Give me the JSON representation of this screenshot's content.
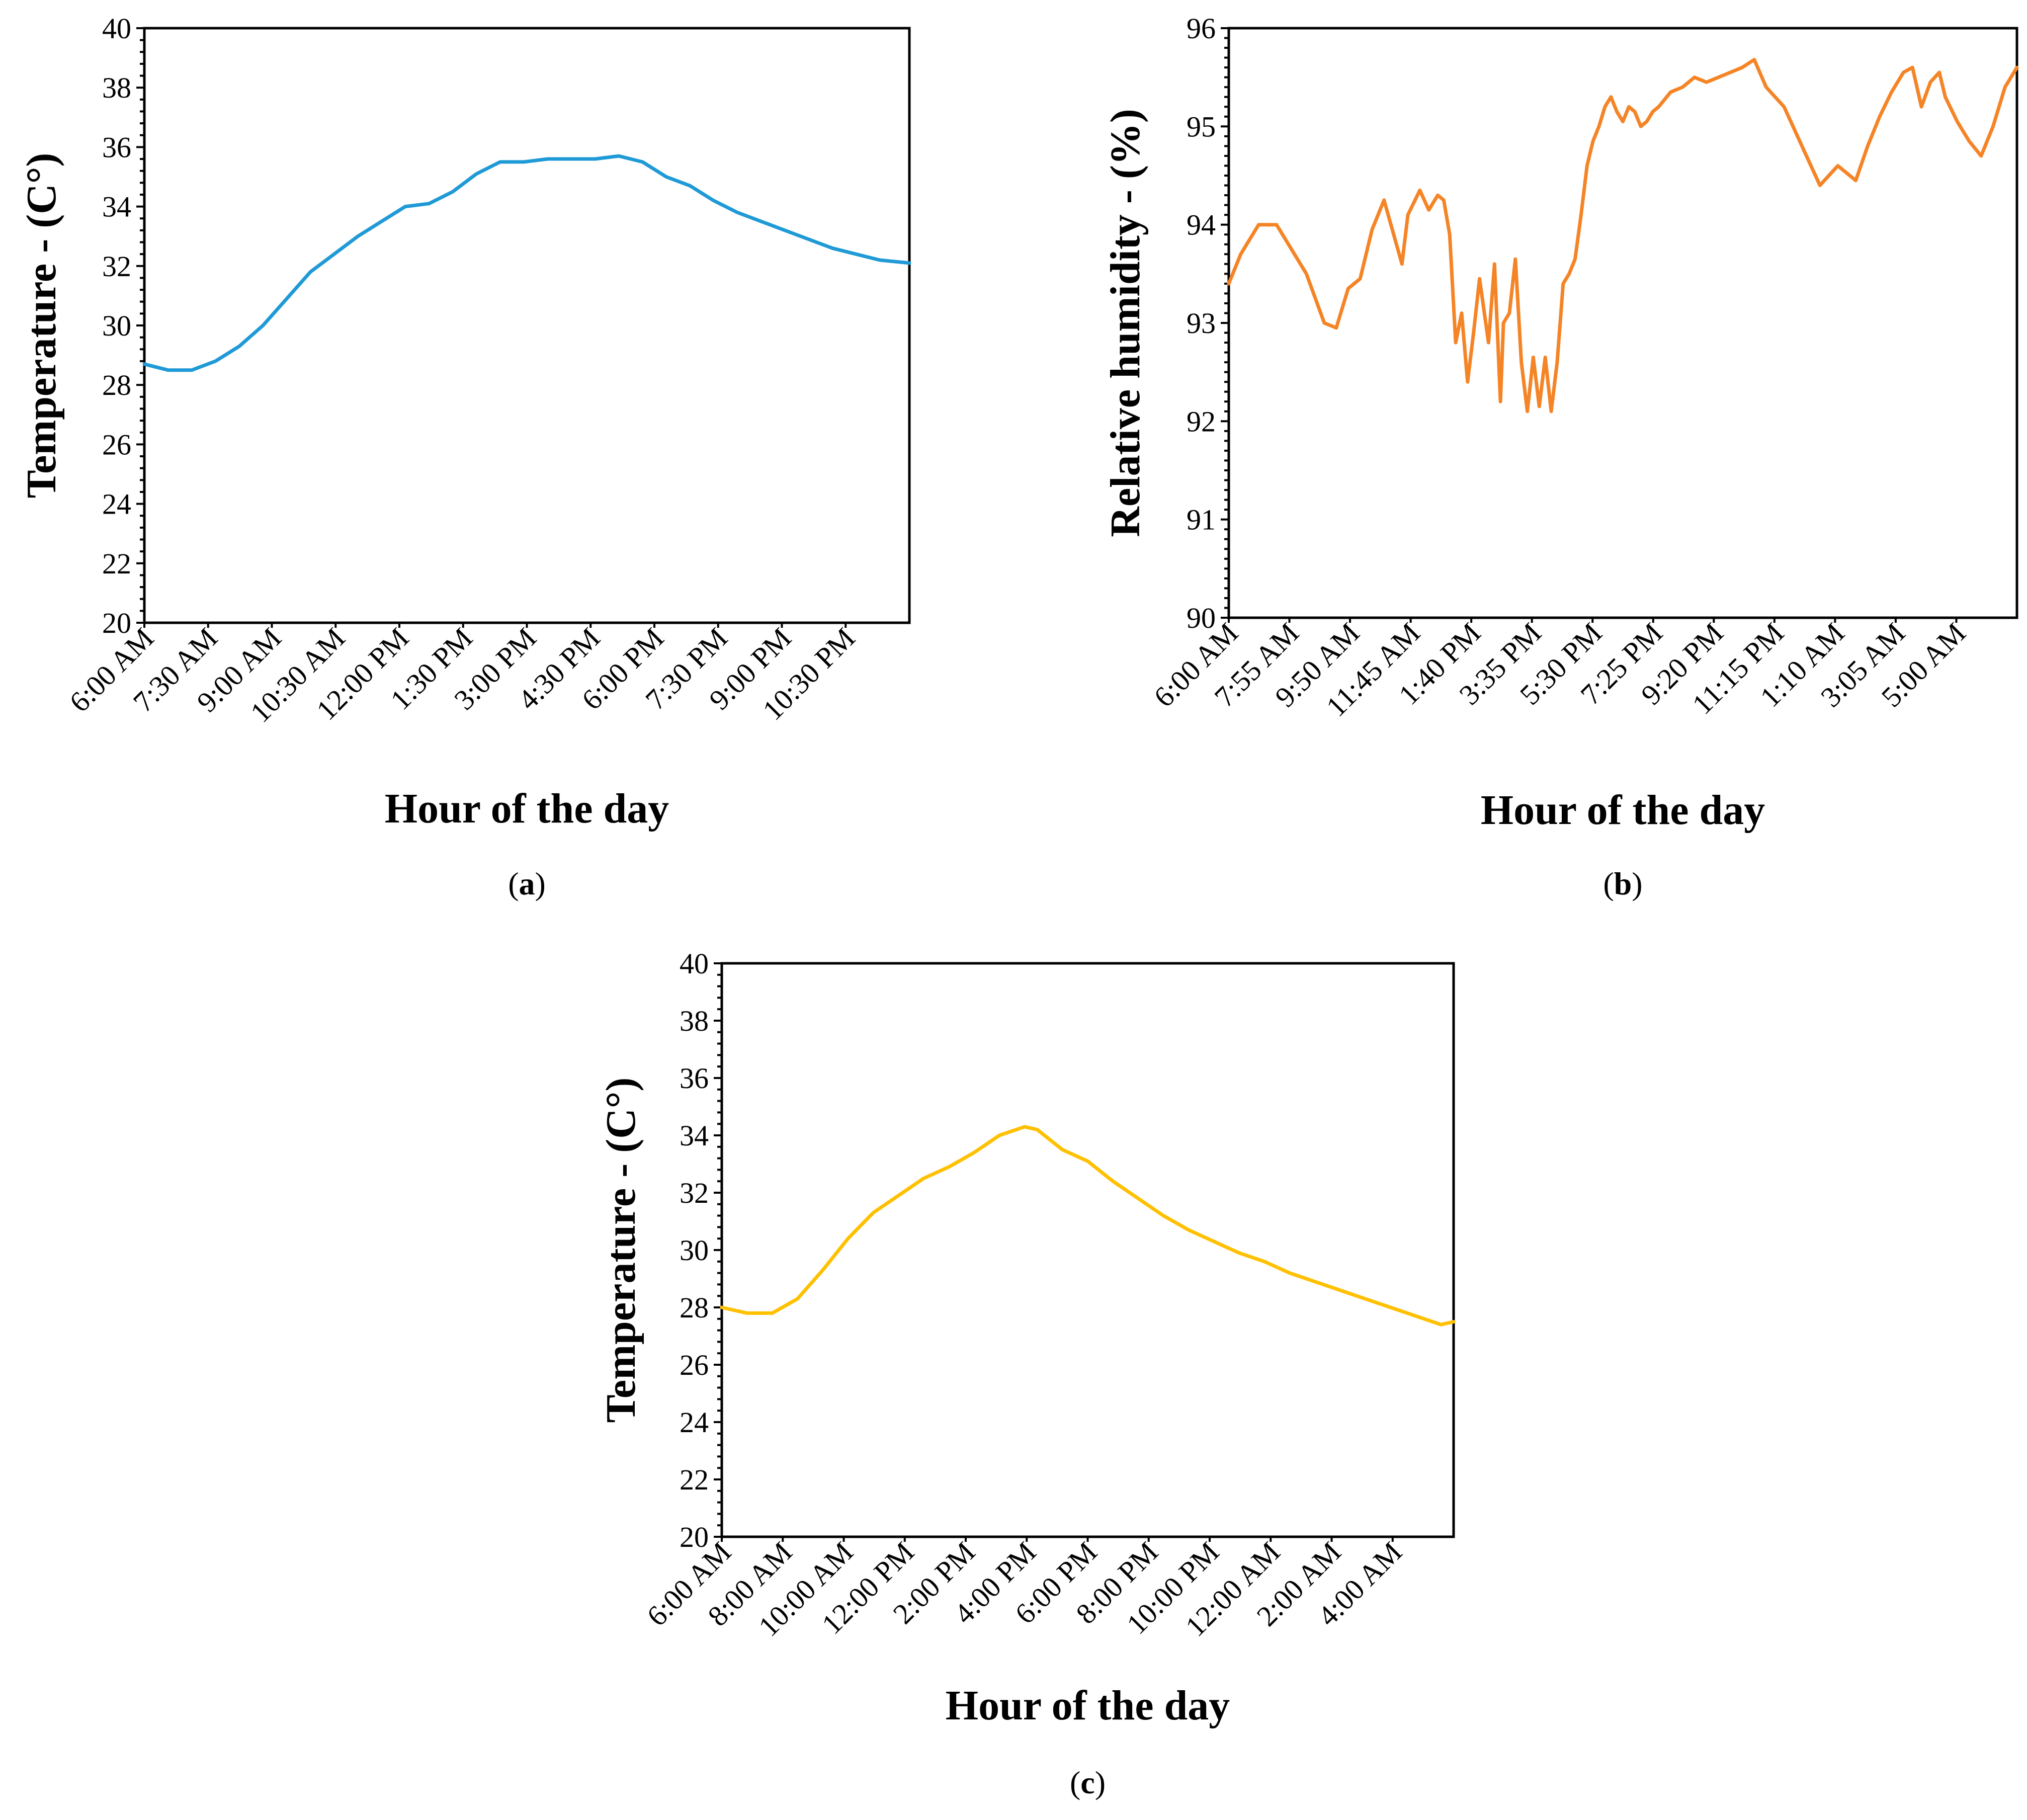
{
  "chart_data": [
    {
      "id": "a",
      "type": "line",
      "panel_label": "a",
      "xlabel": "Hour of the day",
      "ylabel": "Temperature - (C°)",
      "ylim": [
        20,
        40
      ],
      "y_ticks": [
        "20",
        "22",
        "24",
        "26",
        "28",
        "30",
        "32",
        "34",
        "36",
        "38",
        "40"
      ],
      "categories": [
        "6:00 AM",
        "7:30 AM",
        "9:00 AM",
        "10:30 AM",
        "12:00 PM",
        "1:30 PM",
        "3:00 PM",
        "4:30 PM",
        "6:00 PM",
        "7:30 PM",
        "9:00 PM",
        "10:30 PM"
      ],
      "x_range": [
        0,
        12.9
      ],
      "color": "#1f9ad6",
      "series": [
        {
          "name": "Temperature",
          "x": [
            0,
            0.4,
            0.8,
            1.2,
            1.6,
            2.0,
            2.4,
            2.8,
            3.2,
            3.6,
            4.0,
            4.4,
            4.8,
            5.2,
            5.6,
            6.0,
            6.4,
            6.8,
            7.2,
            7.6,
            8.0,
            8.4,
            8.8,
            9.2,
            9.6,
            10.0,
            10.4,
            10.8,
            11.2,
            11.6,
            12.0,
            12.4,
            12.9
          ],
          "y": [
            28.7,
            28.5,
            28.5,
            28.8,
            29.3,
            30.0,
            30.9,
            31.8,
            32.4,
            33.0,
            33.5,
            34.0,
            34.1,
            34.5,
            35.1,
            35.5,
            35.5,
            35.6,
            35.6,
            35.6,
            35.7,
            35.5,
            35.0,
            34.7,
            34.2,
            33.8,
            33.5,
            33.2,
            32.9,
            32.6,
            32.4,
            32.2,
            32.1
          ]
        }
      ]
    },
    {
      "id": "b",
      "type": "line",
      "panel_label": "b",
      "xlabel": "Hour of the day",
      "ylabel": "Relative humidity - (%)",
      "ylim": [
        90,
        96
      ],
      "y_ticks": [
        "90",
        "91",
        "92",
        "93",
        "94",
        "95",
        "96"
      ],
      "categories": [
        "6:00 AM",
        "7:55 AM",
        "9:50 AM",
        "11:45 AM",
        "1:40 PM",
        "3:35 PM",
        "5:30 PM",
        "7:25 PM",
        "9:20 PM",
        "11:15 PM",
        "1:10 AM",
        "3:05 AM",
        "5:00 AM"
      ],
      "x_range": [
        0,
        13.2
      ],
      "color": "#f58426",
      "series": [
        {
          "name": "Relative humidity",
          "x": [
            0,
            0.2,
            0.5,
            0.8,
            1.0,
            1.3,
            1.6,
            1.8,
            2.0,
            2.2,
            2.4,
            2.6,
            2.9,
            3.0,
            3.2,
            3.35,
            3.5,
            3.6,
            3.7,
            3.8,
            3.9,
            4.0,
            4.1,
            4.2,
            4.35,
            4.45,
            4.55,
            4.6,
            4.7,
            4.8,
            4.9,
            5.0,
            5.1,
            5.2,
            5.3,
            5.4,
            5.5,
            5.6,
            5.7,
            5.8,
            5.9,
            6.0,
            6.1,
            6.2,
            6.3,
            6.4,
            6.5,
            6.6,
            6.7,
            6.8,
            6.9,
            7.0,
            7.1,
            7.2,
            7.4,
            7.6,
            7.8,
            8.0,
            8.2,
            8.4,
            8.6,
            8.8,
            9.0,
            9.3,
            9.6,
            9.9,
            10.2,
            10.5,
            10.7,
            10.9,
            11.1,
            11.3,
            11.45,
            11.6,
            11.75,
            11.9,
            12.0,
            12.2,
            12.4,
            12.6,
            12.8,
            13.0,
            13.2
          ],
          "y": [
            93.4,
            93.7,
            94.0,
            94.0,
            93.8,
            93.5,
            93.0,
            92.95,
            93.35,
            93.45,
            93.95,
            94.25,
            93.6,
            94.1,
            94.35,
            94.15,
            94.3,
            94.25,
            93.9,
            92.8,
            93.1,
            92.4,
            92.9,
            93.45,
            92.8,
            93.6,
            92.2,
            93.0,
            93.1,
            93.65,
            92.6,
            92.1,
            92.65,
            92.15,
            92.65,
            92.1,
            92.6,
            93.4,
            93.5,
            93.65,
            94.1,
            94.6,
            94.85,
            95.0,
            95.2,
            95.3,
            95.15,
            95.05,
            95.2,
            95.15,
            95.0,
            95.05,
            95.15,
            95.2,
            95.35,
            95.4,
            95.5,
            95.45,
            95.5,
            95.55,
            95.6,
            95.68,
            95.4,
            95.2,
            94.8,
            94.4,
            94.6,
            94.45,
            94.8,
            95.1,
            95.35,
            95.55,
            95.6,
            95.2,
            95.45,
            95.55,
            95.3,
            95.05,
            94.85,
            94.7,
            95.0,
            95.4,
            95.6
          ]
        }
      ]
    },
    {
      "id": "c",
      "type": "line",
      "panel_label": "c",
      "xlabel": "Hour of the day",
      "ylabel": "Temperature - (C°)",
      "ylim": [
        20,
        40
      ],
      "y_ticks": [
        "20",
        "22",
        "24",
        "26",
        "28",
        "30",
        "32",
        "34",
        "36",
        "38",
        "40"
      ],
      "categories": [
        "6:00 AM",
        "8:00 AM",
        "10:00 AM",
        "12:00 PM",
        "2:00 PM",
        "4:00 PM",
        "6:00 PM",
        "8:00 PM",
        "10:00 PM",
        "12:00 AM",
        "2:00 AM",
        "4:00 AM"
      ],
      "x_range": [
        0,
        11.6
      ],
      "color": "#ffc000",
      "series": [
        {
          "name": "Temperature",
          "x": [
            0,
            0.4,
            0.8,
            1.2,
            1.6,
            2.0,
            2.4,
            2.8,
            3.2,
            3.6,
            4.0,
            4.4,
            4.8,
            5.0,
            5.4,
            5.8,
            6.2,
            6.6,
            7.0,
            7.4,
            7.8,
            8.2,
            8.6,
            9.0,
            9.4,
            9.8,
            10.2,
            10.6,
            11.0,
            11.4,
            11.6
          ],
          "y": [
            28.0,
            27.8,
            27.8,
            28.3,
            29.3,
            30.4,
            31.3,
            31.9,
            32.5,
            32.9,
            33.4,
            34.0,
            34.3,
            34.2,
            33.5,
            33.1,
            32.4,
            31.8,
            31.2,
            30.7,
            30.3,
            29.9,
            29.6,
            29.2,
            28.9,
            28.6,
            28.3,
            28.0,
            27.7,
            27.4,
            27.5
          ]
        }
      ]
    }
  ]
}
